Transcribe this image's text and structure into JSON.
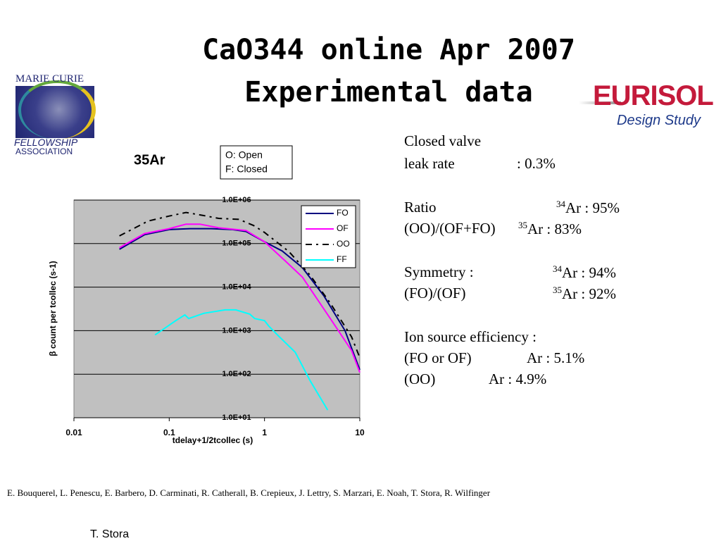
{
  "slide": {
    "title": [
      "CaO344 online Apr 2007",
      "Experimental data"
    ],
    "logo_left": [
      "MARIE CURIE",
      "FELLOWSHIP",
      "ASSOCIATION"
    ],
    "logo_right": [
      "EURISOL",
      "Design Study"
    ],
    "notes": [
      {
        "text": "Closed valve"
      },
      {
        "text": "leak rate",
        "value": ": 0.3%"
      },
      {
        "text": "Ratio",
        "sup": "34",
        "value": "Ar : 95%"
      },
      {
        "text": "(OO)/(OF+FO)",
        "sup": "35",
        "value": "Ar : 83%"
      },
      {
        "text": "Symmetry :",
        "sup": "34",
        "value": "Ar : 94%"
      },
      {
        "text": "(FO)/(OF)",
        "sup": "35",
        "value": "Ar : 92%"
      },
      {
        "text": "Ion source efficiency :"
      },
      {
        "text": "(FO or OF)",
        "value": "Ar : 5.1%"
      },
      {
        "text": "(OO)",
        "value": "Ar : 4.9%"
      }
    ],
    "authors": "E. Bouquerel, L. Penescu, E. Barbero, D. Carminati, R. Catherall, B. Crepieux, J. Lettry, S. Marzari, E. Noah, T. Stora, R. Wilfinger",
    "presenter": "T. Stora"
  },
  "chart_data": {
    "type": "line",
    "title": "35Ar",
    "annotations": [
      "O: Open",
      "F: Closed"
    ],
    "xlabel": "tdelay+1/2tcollec (s)",
    "ylabel": "β count per tcollec (s-1)",
    "xscale": "log",
    "yscale": "log",
    "xlim": [
      0.01,
      10
    ],
    "ylim": [
      10,
      1000000
    ],
    "xticks": [
      0.01,
      0.1,
      1,
      10
    ],
    "yticks": [
      {
        "value": 10,
        "label": "1.0E+01"
      },
      {
        "value": 100,
        "label": "1.0E+02"
      },
      {
        "value": 1000,
        "label": "1.0E+03"
      },
      {
        "value": 10000,
        "label": "1.0E+04"
      },
      {
        "value": 100000,
        "label": "1.0E+05"
      },
      {
        "value": 1000000,
        "label": "1.0E+06"
      }
    ],
    "grid": true,
    "legend": "upper right",
    "series": [
      {
        "name": "FO",
        "color": "#000080",
        "style": "solid",
        "x": [
          0.03,
          0.055,
          0.1,
          0.165,
          0.276,
          0.46,
          0.64,
          1,
          1.53,
          2.5,
          4.2,
          7,
          10
        ],
        "values": [
          74000,
          160000,
          210000,
          220000,
          220000,
          210000,
          190000,
          110000,
          68000,
          28000,
          6300,
          1000,
          126
        ]
      },
      {
        "name": "OF",
        "color": "#ff00ff",
        "style": "solid",
        "x": [
          0.03,
          0.055,
          0.1,
          0.15,
          0.21,
          0.33,
          0.64,
          1,
          1.65,
          2.5,
          4.9,
          8.2,
          10
        ],
        "values": [
          80000,
          170000,
          220000,
          280000,
          280000,
          230000,
          200000,
          110000,
          40000,
          17000,
          1900,
          350,
          110
        ]
      },
      {
        "name": "OO",
        "color": "#000000",
        "style": "dashed",
        "x": [
          0.03,
          0.06,
          0.1,
          0.15,
          0.23,
          0.33,
          0.54,
          0.77,
          1,
          1.8,
          3,
          4.9,
          8.2,
          10
        ],
        "values": [
          150000,
          330000,
          430000,
          520000,
          440000,
          380000,
          360000,
          260000,
          180000,
          66000,
          19000,
          4300,
          720,
          240
        ]
      },
      {
        "name": "FF",
        "color": "#00ffff",
        "style": "solid",
        "x": [
          0.071,
          0.117,
          0.146,
          0.16,
          0.23,
          0.385,
          0.5,
          0.7,
          0.79,
          1,
          1.1,
          1.4,
          2.1,
          3,
          4.6
        ],
        "values": [
          800,
          1700,
          2300,
          1900,
          2500,
          3000,
          3000,
          2400,
          1900,
          1700,
          1300,
          760,
          320,
          72,
          15
        ]
      }
    ]
  }
}
